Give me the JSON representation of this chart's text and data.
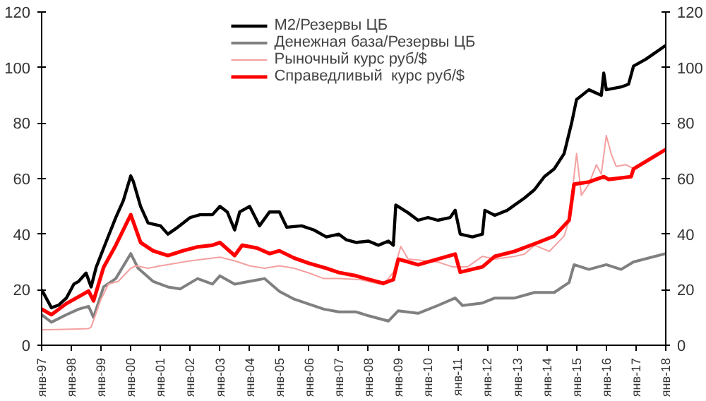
{
  "chart_data": {
    "type": "line",
    "legend": "top",
    "grid": false,
    "line_style": "solid",
    "marker": "none",
    "xlim": [
      "1997-01",
      "2018-01"
    ],
    "xticks": [
      {
        "value": "1997-01",
        "label": "янв-97"
      },
      {
        "value": "1998-01",
        "label": "янв-98"
      },
      {
        "value": "1999-01",
        "label": "янв-99"
      },
      {
        "value": "2000-01",
        "label": "янв-00"
      },
      {
        "value": "2001-01",
        "label": "янв-01"
      },
      {
        "value": "2002-01",
        "label": "янв-02"
      },
      {
        "value": "2003-01",
        "label": "янв-03"
      },
      {
        "value": "2004-01",
        "label": "янв-04"
      },
      {
        "value": "2005-01",
        "label": "янв-05"
      },
      {
        "value": "2006-01",
        "label": "янв-06"
      },
      {
        "value": "2007-01",
        "label": "янв-07"
      },
      {
        "value": "2008-01",
        "label": "янв-08"
      },
      {
        "value": "2009-01",
        "label": "янв-09"
      },
      {
        "value": "2010-01",
        "label": "янв-10"
      },
      {
        "value": "2011-01",
        "label": "янв-11"
      },
      {
        "value": "2012-01",
        "label": "янв-12"
      },
      {
        "value": "2013-01",
        "label": "янв-13"
      },
      {
        "value": "2014-01",
        "label": "янв-14"
      },
      {
        "value": "2015-01",
        "label": "янв-15"
      },
      {
        "value": "2016-01",
        "label": "янв-16"
      },
      {
        "value": "2017-01",
        "label": "янв-17"
      },
      {
        "value": "2018-01",
        "label": "янв-18"
      }
    ],
    "ylim": [
      0,
      120
    ],
    "yticks": [
      0,
      20,
      40,
      60,
      80,
      100,
      120
    ],
    "y2lim": [
      0,
      120
    ],
    "y2ticks": [
      0,
      20,
      40,
      60,
      80,
      100,
      120
    ],
    "series": [
      {
        "name": "M2/Резервы ЦБ",
        "color": "#000000",
        "x": [
          "1997-01",
          "1997-05",
          "1997-08",
          "1997-11",
          "1998-02",
          "1998-04",
          "1998-07",
          "1998-09",
          "1998-11",
          "1999-03",
          "1999-07",
          "1999-10",
          "2000-01",
          "2000-02",
          "2000-05",
          "2000-08",
          "2001-01",
          "2001-04",
          "2001-08",
          "2002-01",
          "2002-05",
          "2002-10",
          "2003-01",
          "2003-04",
          "2003-07",
          "2003-09",
          "2004-01",
          "2004-05",
          "2004-09",
          "2005-01",
          "2005-04",
          "2005-10",
          "2006-03",
          "2006-08",
          "2007-01",
          "2007-04",
          "2007-08",
          "2008-01",
          "2008-05",
          "2008-09",
          "2008-11",
          "2008-12",
          "2009-05",
          "2009-09",
          "2010-01",
          "2010-05",
          "2010-10",
          "2010-12",
          "2011-02",
          "2011-07",
          "2011-11",
          "2011-12",
          "2012-04",
          "2012-09",
          "2012-12",
          "2013-04",
          "2013-08",
          "2013-12",
          "2014-04",
          "2014-08",
          "2014-11",
          "2015-01",
          "2015-06",
          "2015-11",
          "2015-12",
          "2016-01",
          "2016-07",
          "2016-10",
          "2016-12",
          "2017-05",
          "2018-01"
        ],
        "values": [
          20,
          13.5,
          14.5,
          17,
          22,
          23,
          26,
          21,
          28,
          37,
          46,
          52,
          61,
          59,
          50,
          44,
          43,
          40,
          42.5,
          46,
          47,
          47,
          50,
          48,
          41.5,
          48,
          50,
          43,
          48,
          48,
          42.5,
          43,
          41.5,
          39,
          40,
          38,
          37,
          37.5,
          36,
          37.5,
          36,
          50.5,
          47.7,
          45,
          46,
          45,
          46,
          48.6,
          40,
          39,
          40,
          48.6,
          46.8,
          48.6,
          50.5,
          53,
          56,
          60.7,
          63.5,
          69,
          80,
          88.5,
          92,
          90,
          98,
          92,
          93,
          94,
          100.5,
          103,
          108
        ]
      },
      {
        "name": "Денежная база/Резервы ЦБ",
        "color": "#808080",
        "x": [
          "1997-01",
          "1997-05",
          "1997-11",
          "1998-04",
          "1998-08",
          "1998-10",
          "1999-02",
          "1999-07",
          "2000-01",
          "2000-04",
          "2000-10",
          "2001-04",
          "2001-09",
          "2002-04",
          "2002-10",
          "2003-01",
          "2003-07",
          "2004-01",
          "2004-07",
          "2005-01",
          "2005-07",
          "2006-01",
          "2006-07",
          "2007-01",
          "2007-08",
          "2008-01",
          "2008-09",
          "2009-01",
          "2009-09",
          "2010-05",
          "2010-12",
          "2011-03",
          "2011-11",
          "2012-04",
          "2012-12",
          "2013-08",
          "2014-04",
          "2014-10",
          "2014-12",
          "2015-06",
          "2016-01",
          "2016-07",
          "2016-12",
          "2018-01"
        ],
        "values": [
          11,
          8.3,
          11,
          13,
          14,
          10,
          21,
          24,
          33,
          27.7,
          23,
          21,
          20.3,
          24,
          22,
          25,
          22,
          23,
          24,
          19.4,
          16.6,
          14.8,
          13,
          12,
          12,
          10.6,
          8.7,
          12.4,
          11.5,
          14.3,
          17,
          14.3,
          15.2,
          17,
          17,
          19,
          19,
          22.6,
          29,
          27.3,
          29,
          27.3,
          30,
          33
        ]
      },
      {
        "name": "Рыночный курс руб/$",
        "color": "#f4a0a0",
        "x": [
          "1997-01",
          "1998-01",
          "1998-08",
          "1998-09",
          "1999-01",
          "1999-04",
          "1999-08",
          "2000-01",
          "2000-03",
          "2000-08",
          "2001-01",
          "2002-01",
          "2003-01",
          "2003-07",
          "2004-01",
          "2004-07",
          "2005-01",
          "2005-07",
          "2006-01",
          "2006-07",
          "2007-01",
          "2007-10",
          "2008-07",
          "2008-11",
          "2009-02",
          "2009-05",
          "2010-05",
          "2010-11",
          "2011-05",
          "2011-11",
          "2012-04",
          "2012-12",
          "2013-04",
          "2013-08",
          "2014-02",
          "2014-08",
          "2014-10",
          "2015-01",
          "2015-03",
          "2015-06",
          "2015-09",
          "2015-11",
          "2016-01",
          "2016-03",
          "2016-05",
          "2016-09",
          "2016-12"
        ],
        "values": [
          5.5,
          5.8,
          6,
          6.5,
          16.6,
          22,
          23,
          27.7,
          28.6,
          27.7,
          28.6,
          30.4,
          31.7,
          30.4,
          28.6,
          27.7,
          28.6,
          27.7,
          26,
          24,
          24,
          23.6,
          21.7,
          26.3,
          35.6,
          31,
          30,
          28.2,
          28.2,
          32,
          31,
          32,
          32.8,
          36,
          33.8,
          39.3,
          45,
          69,
          54,
          58,
          65,
          61.6,
          75.5,
          69,
          64.4,
          65,
          63.5
        ]
      },
      {
        "name": "Справедливый  курс руб/$",
        "color": "#ff0000",
        "x": [
          "1997-01",
          "1997-05",
          "1997-11",
          "1998-04",
          "1998-08",
          "1998-10",
          "1999-02",
          "1999-07",
          "2000-01",
          "2000-05",
          "2000-10",
          "2001-04",
          "2001-10",
          "2002-04",
          "2002-10",
          "2003-01",
          "2003-07",
          "2003-10",
          "2004-04",
          "2004-09",
          "2005-01",
          "2005-07",
          "2006-01",
          "2006-08",
          "2007-01",
          "2007-08",
          "2007-10",
          "2008-07",
          "2008-11",
          "2009-01",
          "2009-09",
          "2010-05",
          "2010-12",
          "2011-02",
          "2011-11",
          "2012-04",
          "2012-12",
          "2013-08",
          "2014-04",
          "2014-10",
          "2014-12",
          "2015-06",
          "2015-12",
          "2016-02",
          "2016-11",
          "2016-12",
          "2018-01"
        ],
        "values": [
          13,
          11,
          15,
          17.5,
          19.5,
          16,
          28,
          36,
          47,
          37,
          34,
          32.3,
          34,
          35.4,
          36,
          37,
          32.3,
          36,
          35,
          33,
          34,
          31.4,
          29.5,
          27.7,
          26.2,
          25,
          24.5,
          22.3,
          23.6,
          31,
          29,
          31,
          32.8,
          26.3,
          28.2,
          32,
          33.8,
          36.5,
          39.3,
          45,
          58,
          58.8,
          60.7,
          59.7,
          60.7,
          63.5,
          70.5
        ]
      }
    ]
  }
}
